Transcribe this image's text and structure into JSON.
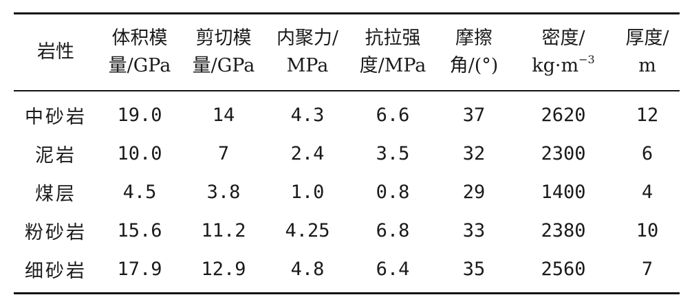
{
  "table": {
    "headers": [
      {
        "line1": "岩性",
        "line2": ""
      },
      {
        "line1": "体积模",
        "line2": "量/GPa"
      },
      {
        "line1": "剪切模",
        "line2": "量/GPa"
      },
      {
        "line1": "内聚力/",
        "line2": "MPa"
      },
      {
        "line1": "抗拉强",
        "line2": "度/MPa"
      },
      {
        "line1": "摩擦",
        "line2": "角/(°)"
      },
      {
        "line1": "密度/",
        "line2": "kg·m",
        "sup": "−3"
      },
      {
        "line1": "厚度/",
        "line2": "m"
      }
    ],
    "rows": [
      [
        "中砂岩",
        "19.0",
        "14",
        "4.3",
        "6.6",
        "37",
        "2620",
        "12"
      ],
      [
        "泥岩",
        "10.0",
        "7",
        "2.4",
        "3.5",
        "32",
        "2300",
        "6"
      ],
      [
        "煤层",
        "4.5",
        "3.8",
        "1.0",
        "0.8",
        "29",
        "1400",
        "4"
      ],
      [
        "粉砂岩",
        "15.6",
        "11.2",
        "4.25",
        "6.8",
        "33",
        "2380",
        "10"
      ],
      [
        "细砂岩",
        "17.9",
        "12.9",
        "4.8",
        "6.4",
        "35",
        "2560",
        "7"
      ]
    ]
  }
}
